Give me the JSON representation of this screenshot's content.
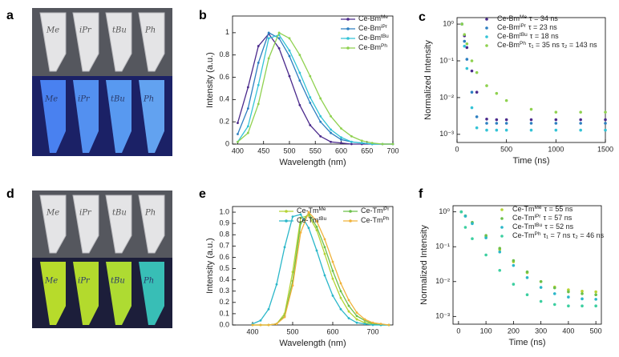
{
  "panel_labels": [
    "a",
    "b",
    "c",
    "d",
    "e",
    "f"
  ],
  "photos": [
    {
      "tube_labels": [
        "Me",
        "iPr",
        "tBu",
        "Ph"
      ]
    },
    {
      "tube_labels": [
        "Me",
        "iPr",
        "tBu",
        "Ph"
      ]
    }
  ],
  "chart_data": [
    {
      "type": "line",
      "x_label": "Wavelength (nm)",
      "y_label": "Intensity (a.u.)",
      "x": [
        400,
        420,
        440,
        460,
        480,
        500,
        520,
        540,
        560,
        580,
        600,
        620,
        640,
        660,
        680,
        700
      ],
      "xlim": [
        390,
        700
      ],
      "xticks": [
        400,
        450,
        500,
        550,
        600,
        650,
        700
      ],
      "ylim": [
        0,
        1.15
      ],
      "yticks": [
        0,
        0.2,
        0.4,
        0.6,
        0.8,
        1
      ],
      "legend": "upper right",
      "series": [
        {
          "name": "Ce-Bm",
          "sup": "Me",
          "color": "#4b2a8c",
          "values": [
            0.19,
            0.51,
            0.88,
            0.99,
            0.86,
            0.61,
            0.35,
            0.17,
            0.07,
            0.02,
            0.01,
            0,
            0,
            0,
            0,
            0
          ]
        },
        {
          "name": "Ce-Bm",
          "sup": "iPr",
          "color": "#2d7fc1",
          "values": [
            0.09,
            0.32,
            0.73,
            1.0,
            0.95,
            0.79,
            0.57,
            0.37,
            0.2,
            0.1,
            0.04,
            0.02,
            0.01,
            0,
            0,
            0
          ]
        },
        {
          "name": "Ce-Bm",
          "sup": "tBu",
          "color": "#33c3d6",
          "values": [
            0.02,
            0.16,
            0.53,
            0.95,
            0.98,
            0.84,
            0.64,
            0.42,
            0.25,
            0.13,
            0.06,
            0.02,
            0.01,
            0,
            0,
            0
          ]
        },
        {
          "name": "Ce-Bm",
          "sup": "Ph",
          "color": "#8fd14f",
          "values": [
            0.02,
            0.1,
            0.36,
            0.77,
            1.0,
            0.95,
            0.8,
            0.61,
            0.41,
            0.25,
            0.14,
            0.07,
            0.03,
            0.01,
            0,
            0
          ]
        }
      ]
    },
    {
      "type": "scatter",
      "x_label": "Time (ns)",
      "y_label": "Normalized Intensity",
      "log_y": true,
      "x": [
        50,
        75,
        100,
        150,
        200,
        300,
        400,
        500,
        750,
        1000,
        1250,
        1500
      ],
      "xlim": [
        0,
        1500
      ],
      "xticks": [
        0,
        500,
        1000,
        1500
      ],
      "ylim": [
        0.0006,
        1.5
      ],
      "yticks": [
        {
          "value": 0.001,
          "label": "10⁻³"
        },
        {
          "value": 0.01,
          "label": "10⁻²"
        },
        {
          "value": 0.1,
          "label": "10⁻¹"
        },
        {
          "value": 1,
          "label": "10⁰"
        }
      ],
      "legend": "upper right",
      "series": [
        {
          "name": "Ce-Bm",
          "sup": "Me",
          "annotation": "τ = 34 ns",
          "color": "#4b2a8c",
          "values": [
            1,
            0.48,
            0.23,
            0.053,
            0.014,
            0.0026,
            0.0025,
            0.0025,
            0.0025,
            0.0025,
            0.0025,
            0.0025
          ]
        },
        {
          "name": "Ce-Bm",
          "sup": "iPr",
          "annotation": "τ = 23 ns",
          "color": "#2d7fc1",
          "values": [
            1,
            0.34,
            0.11,
            0.014,
            0.003,
            0.002,
            0.002,
            0.002,
            0.002,
            0.002,
            0.002,
            0.002
          ]
        },
        {
          "name": "Ce-Bm",
          "sup": "tBu",
          "annotation": "τ = 18 ns",
          "color": "#33c3d6",
          "values": [
            1,
            0.25,
            0.062,
            0.0053,
            0.0015,
            0.0013,
            0.0013,
            0.0013,
            0.0013,
            0.0013,
            0.0013,
            0.0013
          ]
        },
        {
          "name": "Ce-Bm",
          "sup": "Ph",
          "annotation": "τ₁ = 35 ns  τ₂ = 143 ns",
          "color": "#8fd14f",
          "values": [
            1,
            0.52,
            0.29,
            0.1,
            0.048,
            0.021,
            0.013,
            0.0083,
            0.0048,
            0.004,
            0.004,
            0.004
          ]
        }
      ]
    },
    {
      "type": "line",
      "x_label": "Wavelength (nm)",
      "y_label": "Intensity (a.u.)",
      "x": [
        400,
        420,
        440,
        460,
        480,
        500,
        520,
        540,
        560,
        580,
        600,
        620,
        640,
        660,
        680,
        700,
        720,
        740
      ],
      "xlim": [
        350,
        750
      ],
      "xticks": [
        400,
        500,
        600,
        700
      ],
      "ylim": [
        0,
        1.05
      ],
      "yticks": [
        {
          "value": 0,
          "label": "0.0"
        },
        0.1,
        0.2,
        0.3,
        0.4,
        0.5,
        0.6,
        0.7,
        0.8,
        0.9,
        {
          "value": 1,
          "label": "1.0"
        }
      ],
      "legend": "upper center",
      "legend_columns": 2,
      "series": [
        {
          "name": "Ce-Tm",
          "sup": "Me",
          "color": "#b5d334",
          "values": [
            0,
            0,
            0,
            0.01,
            0.1,
            0.47,
            0.95,
            0.97,
            0.84,
            0.63,
            0.41,
            0.24,
            0.12,
            0.05,
            0.02,
            0.01,
            0,
            0
          ]
        },
        {
          "name": "Ce-Tm",
          "sup": "iPr",
          "color": "#6cc04a",
          "values": [
            0,
            0,
            0,
            0.01,
            0.08,
            0.39,
            0.9,
            0.99,
            0.87,
            0.69,
            0.48,
            0.3,
            0.17,
            0.08,
            0.04,
            0.01,
            0,
            0
          ]
        },
        {
          "name": "Ce-Tm",
          "sup": "tBu",
          "color": "#2ab7c9",
          "values": [
            0.01,
            0.04,
            0.14,
            0.36,
            0.69,
            0.96,
            0.98,
            0.86,
            0.66,
            0.44,
            0.26,
            0.14,
            0.06,
            0.02,
            0.01,
            0,
            0,
            0
          ]
        },
        {
          "name": "Ce-Tm",
          "sup": "Ph",
          "color": "#f0b23a",
          "values": [
            0,
            0,
            0,
            0.01,
            0.07,
            0.35,
            0.82,
            1.0,
            0.92,
            0.76,
            0.56,
            0.37,
            0.22,
            0.11,
            0.05,
            0.02,
            0.01,
            0
          ]
        }
      ]
    },
    {
      "type": "scatter",
      "x_label": "Time (ns)",
      "y_label": "Normalized Intensity",
      "log_y": true,
      "x": [
        10,
        25,
        50,
        100,
        150,
        200,
        250,
        300,
        350,
        400,
        450,
        500
      ],
      "xlim": [
        -20,
        520
      ],
      "xticks": [
        0,
        100,
        200,
        300,
        400,
        500
      ],
      "ylim": [
        0.0006,
        1.5
      ],
      "yticks": [
        {
          "value": 0.001,
          "label": "10⁻³"
        },
        {
          "value": 0.01,
          "label": "10⁻²"
        },
        {
          "value": 0.1,
          "label": "10⁻¹"
        },
        {
          "value": 1,
          "label": "10⁰"
        }
      ],
      "legend": "upper right",
      "series": [
        {
          "name": "Ce-Tm",
          "sup": "Me",
          "annotation": "τ = 55 ns",
          "color": "#b5d334",
          "values": [
            1,
            0.76,
            0.48,
            0.195,
            0.083,
            0.037,
            0.018,
            0.01,
            0.007,
            0.0058,
            0.0053,
            0.0051
          ]
        },
        {
          "name": "Ce-Tm",
          "sup": "iPr",
          "annotation": "τ = 57 ns",
          "color": "#6cc04a",
          "values": [
            1,
            0.77,
            0.5,
            0.21,
            0.09,
            0.04,
            0.019,
            0.01,
            0.0066,
            0.0051,
            0.0045,
            0.0042
          ]
        },
        {
          "name": "Ce-Tm",
          "sup": "tBu",
          "annotation": "τ = 52 ns",
          "color": "#2ab7c9",
          "values": [
            1,
            0.75,
            0.46,
            0.18,
            0.071,
            0.029,
            0.013,
            0.0068,
            0.0045,
            0.0036,
            0.0032,
            0.0031
          ]
        },
        {
          "name": "Ce-Tm",
          "sup": "Ph",
          "annotation": "τ₁ = 7 ns  τ₂ = 46 ns",
          "color": "#3ccfa0",
          "values": [
            1,
            0.36,
            0.17,
            0.058,
            0.021,
            0.0084,
            0.0042,
            0.0027,
            0.0022,
            0.002,
            0.002,
            0.002
          ]
        }
      ]
    }
  ]
}
